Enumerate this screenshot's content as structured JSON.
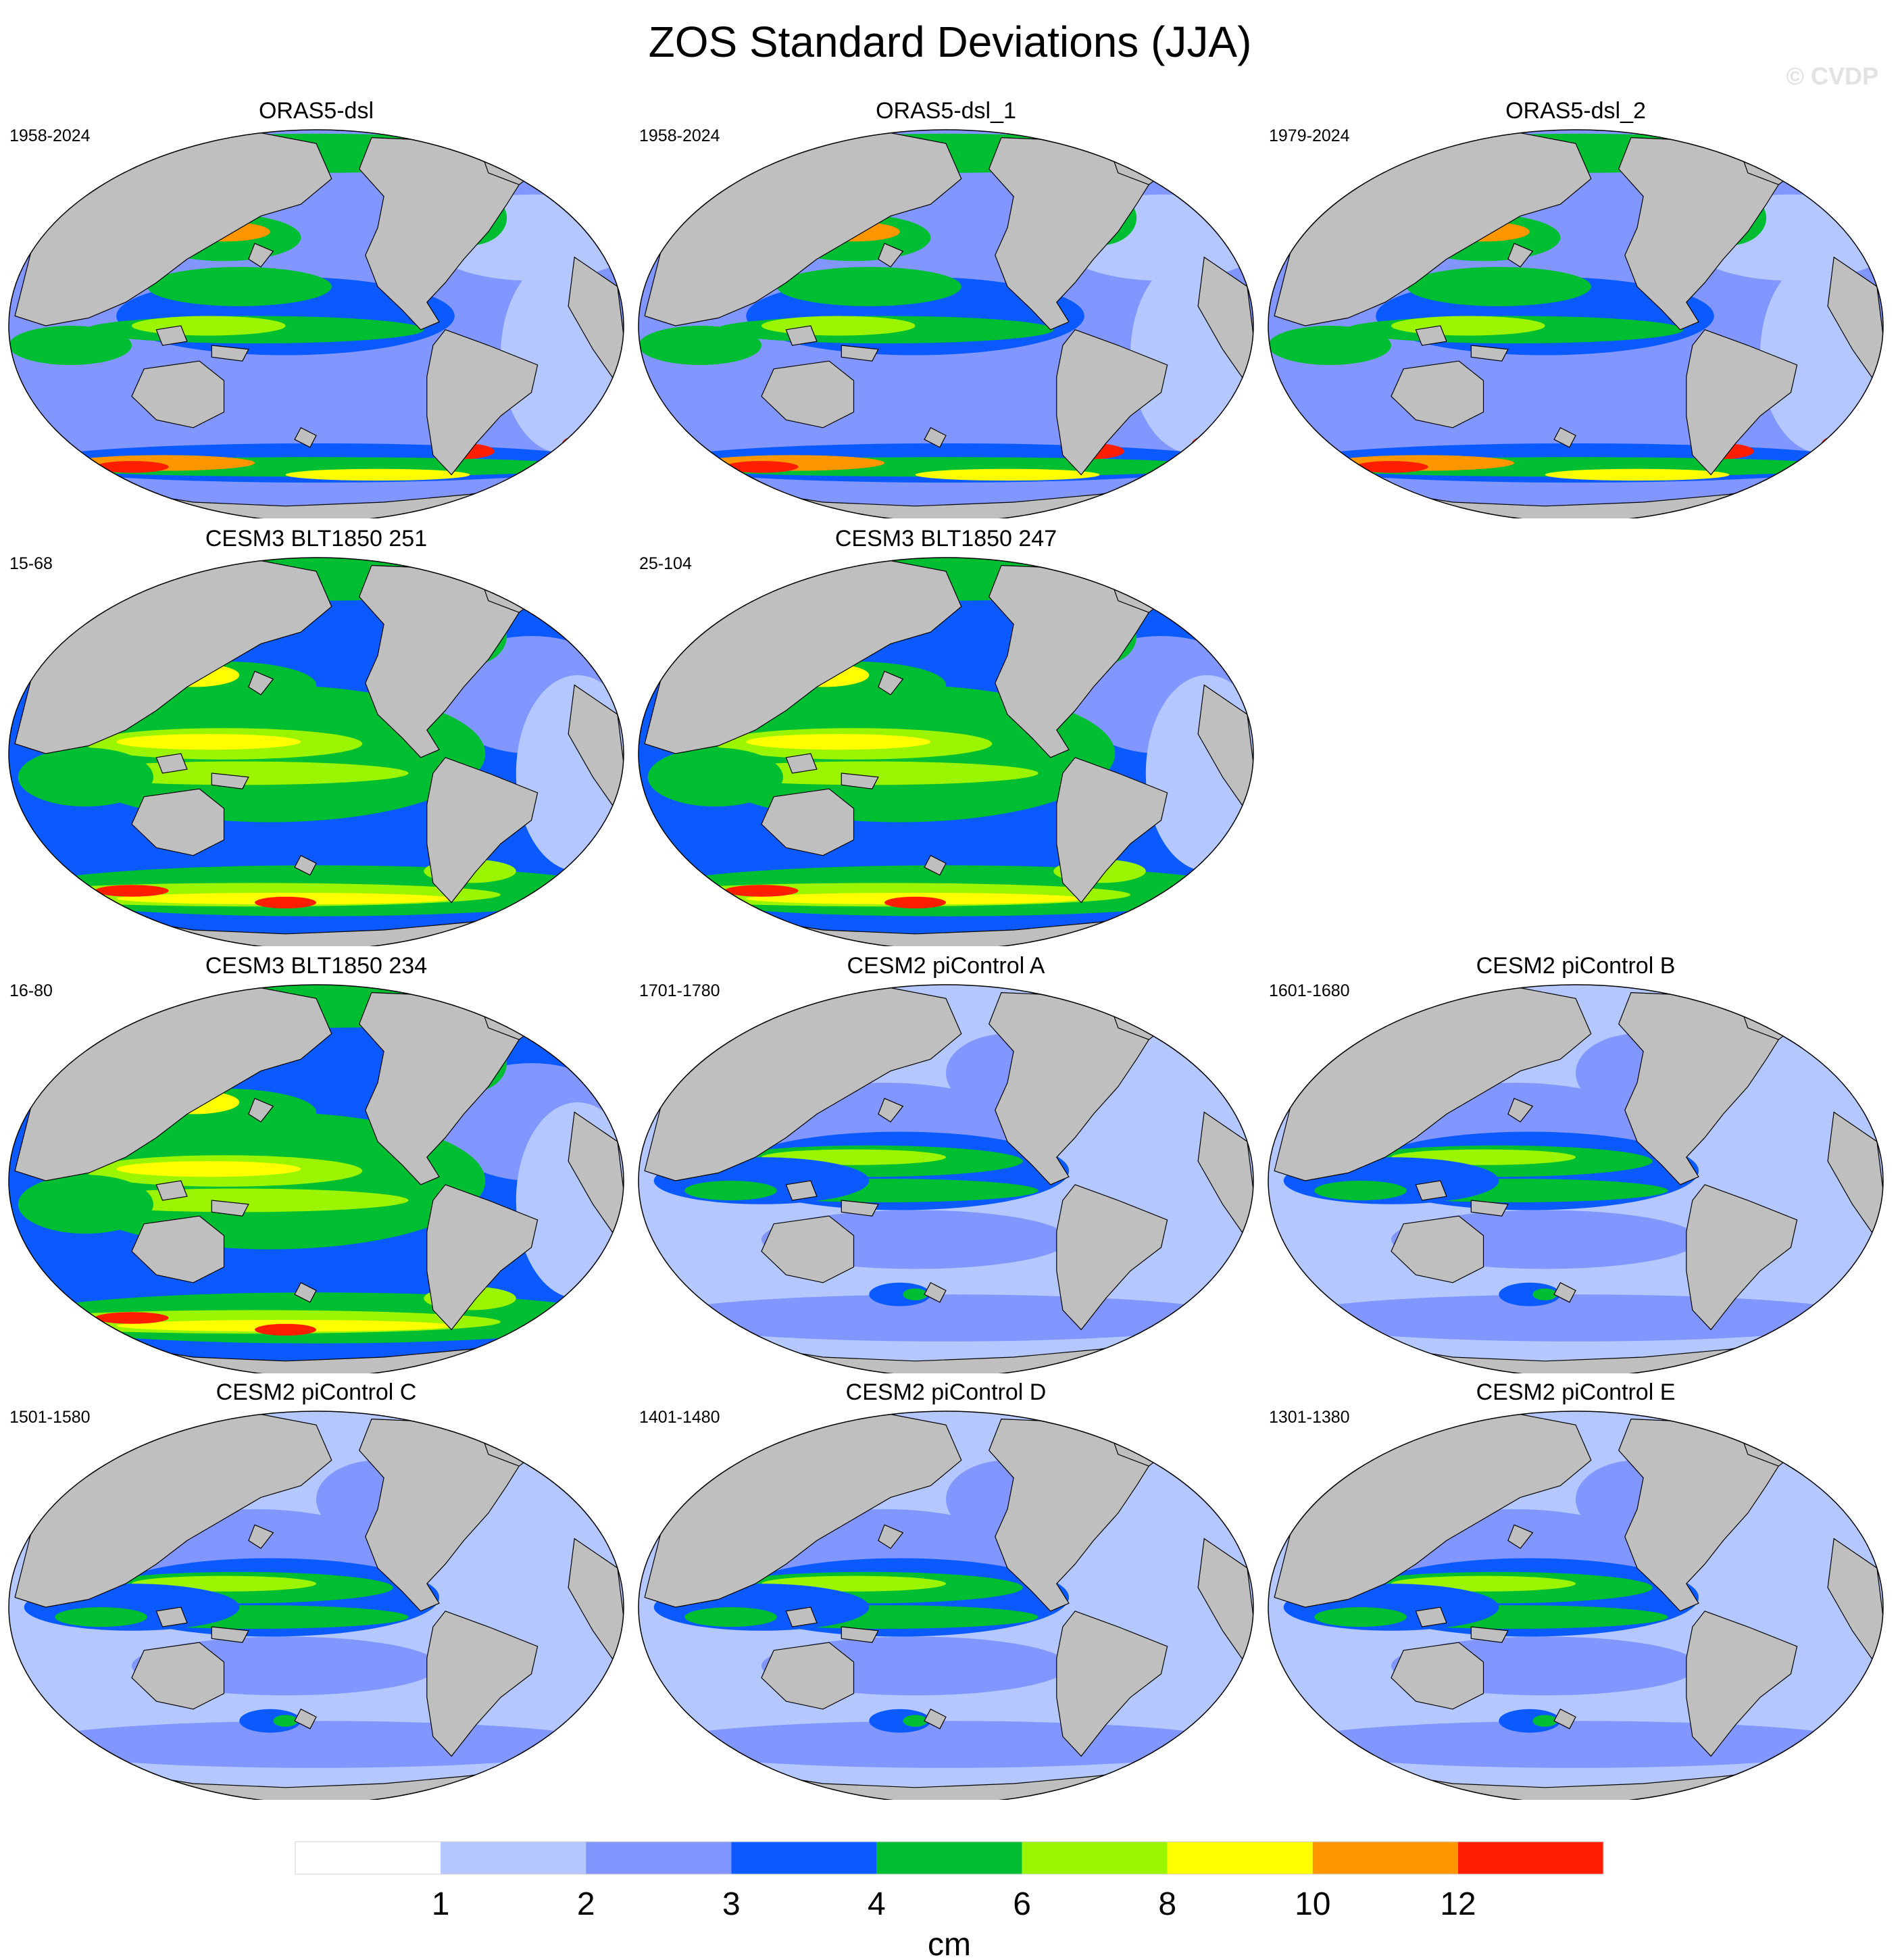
{
  "title": "ZOS Standard Deviations (JJA)",
  "watermark": "© CVDP",
  "panels": [
    {
      "title": "ORAS5-dsl",
      "period": "1958-2024",
      "row": 0,
      "col": 0,
      "style": "obs"
    },
    {
      "title": "ORAS5-dsl_1",
      "period": "1958-2024",
      "row": 0,
      "col": 1,
      "style": "obs"
    },
    {
      "title": "ORAS5-dsl_2",
      "period": "1979-2024",
      "row": 0,
      "col": 2,
      "style": "obs"
    },
    {
      "title": "CESM3 BLT1850 251",
      "period": "15-68",
      "row": 1,
      "col": 0,
      "style": "cesm3"
    },
    {
      "title": "CESM3 BLT1850 247",
      "period": "25-104",
      "row": 1,
      "col": 1,
      "style": "cesm3"
    },
    {
      "title": "CESM3 BLT1850 234",
      "period": "16-80",
      "row": 2,
      "col": 0,
      "style": "cesm3"
    },
    {
      "title": "CESM2 piControl A",
      "period": "1701-1780",
      "row": 2,
      "col": 1,
      "style": "cesm2"
    },
    {
      "title": "CESM2 piControl B",
      "period": "1601-1680",
      "row": 2,
      "col": 2,
      "style": "cesm2"
    },
    {
      "title": "CESM2 piControl C",
      "period": "1501-1580",
      "row": 3,
      "col": 0,
      "style": "cesm2"
    },
    {
      "title": "CESM2 piControl D",
      "period": "1401-1480",
      "row": 3,
      "col": 1,
      "style": "cesm2"
    },
    {
      "title": "CESM2 piControl E",
      "period": "1301-1380",
      "row": 3,
      "col": 2,
      "style": "cesm2"
    }
  ],
  "colorbar": {
    "unit": "cm",
    "levels": [
      1,
      2,
      3,
      4,
      6,
      8,
      10,
      12
    ],
    "tick_labels": [
      "1",
      "2",
      "3",
      "4",
      "6",
      "8",
      "10",
      "12"
    ],
    "colors": [
      "#ffffff",
      "#b4c8ff",
      "#8296ff",
      "#0a5aff",
      "#00be32",
      "#9bf500",
      "#ffff00",
      "#ff9600",
      "#ff1e00"
    ]
  },
  "colors": {
    "land": "#bfbfbf",
    "outline": "#000000"
  }
}
